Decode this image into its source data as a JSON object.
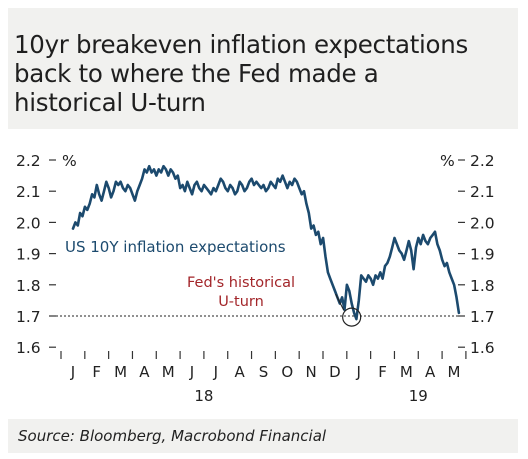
{
  "header": {
    "title_line1": "10yr breakeven inflation expectations",
    "title_line2": "back to where the Fed made a",
    "title_line3": "historical U-turn"
  },
  "footer": {
    "source": "Source: Bloomberg, Macrobond Financial"
  },
  "colors": {
    "series": "#1c4a6e",
    "annotation_text": "#a3262a",
    "series_label": "#1c4a6e",
    "axis": "#333333",
    "reference_line": "#222222",
    "background_band": "#f1f1ef"
  },
  "chart_data": {
    "type": "line",
    "title": "10yr breakeven inflation expectations back to where the Fed made a historical U-turn",
    "left_unit_label": "%",
    "right_unit_label": "%",
    "ylim": [
      1.55,
      2.22
    ],
    "y_ticks": [
      1.6,
      1.7,
      1.8,
      1.9,
      2.0,
      2.1,
      2.2
    ],
    "y_tick_labels": [
      "1.6",
      "1.7",
      "1.8",
      "1.9",
      "2.0",
      "2.1",
      "2.2"
    ],
    "x_month_labels": [
      "J",
      "F",
      "M",
      "A",
      "M",
      "J",
      "J",
      "A",
      "S",
      "O",
      "N",
      "D",
      "J",
      "F",
      "M",
      "A",
      "M"
    ],
    "x_year_labels": [
      "18",
      "19"
    ],
    "grid": false,
    "reference_line": {
      "value": 1.7,
      "style": "dotted"
    },
    "series": [
      {
        "name": "US 10Y inflation expectations",
        "x_month_index": [
          0,
          0.1,
          0.2,
          0.3,
          0.4,
          0.5,
          0.6,
          0.7,
          0.8,
          0.9,
          1.0,
          1.1,
          1.2,
          1.3,
          1.4,
          1.5,
          1.6,
          1.7,
          1.8,
          1.9,
          2.0,
          2.1,
          2.2,
          2.3,
          2.4,
          2.5,
          2.6,
          2.7,
          2.8,
          2.9,
          3.0,
          3.1,
          3.2,
          3.3,
          3.4,
          3.5,
          3.6,
          3.7,
          3.8,
          3.9,
          4.0,
          4.1,
          4.2,
          4.3,
          4.4,
          4.5,
          4.6,
          4.7,
          4.8,
          4.9,
          5.0,
          5.1,
          5.2,
          5.3,
          5.4,
          5.5,
          5.6,
          5.7,
          5.8,
          5.9,
          6.0,
          6.1,
          6.2,
          6.3,
          6.4,
          6.5,
          6.6,
          6.7,
          6.8,
          6.9,
          7.0,
          7.1,
          7.2,
          7.3,
          7.4,
          7.5,
          7.6,
          7.7,
          7.8,
          7.9,
          8.0,
          8.1,
          8.2,
          8.3,
          8.4,
          8.5,
          8.6,
          8.7,
          8.8,
          8.9,
          9.0,
          9.1,
          9.2,
          9.3,
          9.4,
          9.5,
          9.6,
          9.7,
          9.8,
          9.9,
          10.0,
          10.1,
          10.2,
          10.3,
          10.4,
          10.5,
          10.6,
          10.7,
          10.8,
          10.9,
          11.0,
          11.1,
          11.2,
          11.3,
          11.4,
          11.5,
          11.6,
          11.7,
          11.8,
          11.9,
          12.0,
          12.1,
          12.2,
          12.3,
          12.4,
          12.5,
          12.6,
          12.7,
          12.8,
          12.9,
          13.0,
          13.1,
          13.2,
          13.3,
          13.4,
          13.5,
          13.6,
          13.7,
          13.8,
          13.9,
          14.0,
          14.1,
          14.2,
          14.3,
          14.4,
          14.5,
          14.6,
          14.7,
          14.8,
          14.9,
          15.0,
          15.1,
          15.2,
          15.3,
          15.4,
          15.5,
          15.6,
          15.7,
          15.8,
          15.9,
          16.0,
          16.1,
          16.2
        ],
        "values": [
          1.98,
          2.0,
          1.99,
          2.03,
          2.02,
          2.05,
          2.04,
          2.06,
          2.09,
          2.08,
          2.12,
          2.09,
          2.07,
          2.1,
          2.13,
          2.11,
          2.08,
          2.1,
          2.13,
          2.12,
          2.13,
          2.11,
          2.1,
          2.12,
          2.11,
          2.09,
          2.07,
          2.1,
          2.12,
          2.14,
          2.17,
          2.16,
          2.18,
          2.16,
          2.17,
          2.15,
          2.17,
          2.16,
          2.18,
          2.17,
          2.15,
          2.17,
          2.16,
          2.14,
          2.15,
          2.11,
          2.12,
          2.1,
          2.13,
          2.11,
          2.09,
          2.12,
          2.13,
          2.11,
          2.1,
          2.12,
          2.11,
          2.1,
          2.09,
          2.11,
          2.1,
          2.12,
          2.14,
          2.13,
          2.11,
          2.1,
          2.12,
          2.11,
          2.09,
          2.1,
          2.13,
          2.12,
          2.1,
          2.11,
          2.13,
          2.14,
          2.12,
          2.13,
          2.12,
          2.11,
          2.12,
          2.1,
          2.11,
          2.13,
          2.12,
          2.11,
          2.14,
          2.13,
          2.15,
          2.13,
          2.11,
          2.13,
          2.12,
          2.14,
          2.13,
          2.11,
          2.09,
          2.1,
          2.06,
          2.03,
          1.98,
          1.99,
          1.96,
          1.97,
          1.93,
          1.95,
          1.89,
          1.84,
          1.82,
          1.8,
          1.78,
          1.76,
          1.74,
          1.76,
          1.72,
          1.8,
          1.78,
          1.74,
          1.71,
          1.69,
          1.75,
          1.83,
          1.82,
          1.81,
          1.83,
          1.82,
          1.8,
          1.83,
          1.82,
          1.84,
          1.82,
          1.86,
          1.87,
          1.89,
          1.92,
          1.95,
          1.93,
          1.91,
          1.9,
          1.88,
          1.91,
          1.94,
          1.91,
          1.85,
          1.92,
          1.95,
          1.93,
          1.96,
          1.94,
          1.93,
          1.95,
          1.96,
          1.97,
          1.93,
          1.91,
          1.88,
          1.86,
          1.87,
          1.84,
          1.82,
          1.8,
          1.76,
          1.71
        ]
      }
    ],
    "annotations": [
      {
        "text": "US 10Y inflation expectations",
        "kind": "series-label"
      },
      {
        "text_line1": "Fed's historical",
        "text_line2": "U-turn",
        "kind": "callout",
        "x_month_index": 11.7,
        "y": 1.69
      }
    ]
  }
}
